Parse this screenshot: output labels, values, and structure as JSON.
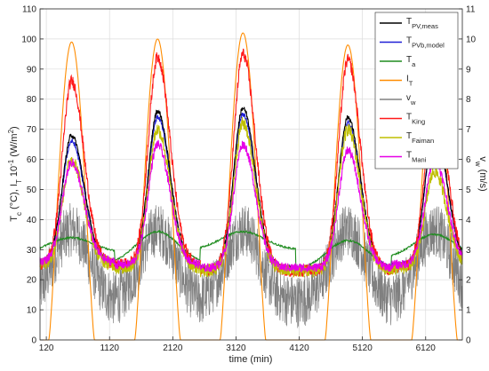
{
  "chart_data": {
    "type": "line",
    "xlabel": "time (min)",
    "ylabel_left": {
      "main": "T",
      "sub1": "c",
      "mid": " (°C), I",
      "sub2": "T",
      "tail": " 10",
      "sup": "-1",
      "unit": " (W/m",
      "sup2": "2",
      "close": ")"
    },
    "ylabel_right": {
      "main": "v",
      "sub": "w",
      "unit": " (m/s)"
    },
    "xlim": [
      20,
      6700
    ],
    "ylim_left": [
      0,
      110
    ],
    "ylim_right": [
      0,
      11
    ],
    "x_ticks": [
      120,
      1120,
      2120,
      3120,
      4120,
      5120,
      6120
    ],
    "y_ticks_left": [
      0,
      10,
      20,
      30,
      40,
      50,
      60,
      70,
      80,
      90,
      100,
      110
    ],
    "y_ticks_right": [
      0,
      1,
      2,
      3,
      4,
      5,
      6,
      7,
      8,
      9,
      10,
      11
    ],
    "grid": true,
    "legend_position": "top-right",
    "day_peaks_x": [
      520,
      1880,
      3230,
      4890,
      6260
    ],
    "series": [
      {
        "id": "tpv_meas",
        "label_main": "T",
        "label_sub": "PV,meas",
        "color": "#000000",
        "baseline": [
          26,
          25,
          24,
          24,
          25
        ],
        "peak": [
          68,
          76,
          77,
          74,
          71
        ]
      },
      {
        "id": "tpvb_model",
        "label_main": "T",
        "label_sub": "PVb,model",
        "color": "#1f1fd6",
        "baseline": [
          26,
          25,
          24,
          24,
          25
        ],
        "peak": [
          66,
          74,
          75,
          72,
          70
        ]
      },
      {
        "id": "ta",
        "label_main": "T",
        "label_sub": "a",
        "color": "#1e8c1e",
        "baseline": [
          29,
          25,
          30,
          23,
          27
        ],
        "peak": [
          34,
          36,
          36,
          33,
          35
        ]
      },
      {
        "id": "it",
        "label_main": "I",
        "label_sub": "T",
        "color": "#ff8c00",
        "baseline": [
          0,
          0,
          0,
          0,
          0
        ],
        "peak": [
          99,
          100,
          102,
          98,
          93
        ]
      },
      {
        "id": "vw",
        "label_main": "v",
        "label_sub": "w",
        "color": "#808080",
        "axis": "right",
        "range": [
          0,
          6
        ]
      },
      {
        "id": "tking",
        "label_main": "T",
        "label_sub": "King",
        "color": "#ff1a1a",
        "baseline": [
          25,
          25,
          23,
          23,
          24
        ],
        "peak": [
          86,
          94,
          95,
          93,
          81
        ]
      },
      {
        "id": "tfaiman",
        "label_main": "T",
        "label_sub": "Faiman",
        "color": "#bfbf00",
        "baseline": [
          25,
          24,
          23,
          23,
          24
        ],
        "peak": [
          60,
          70,
          72,
          70,
          56
        ]
      },
      {
        "id": "tmani",
        "label_main": "T",
        "label_sub": "Mani",
        "color": "#e600e6",
        "baseline": [
          26,
          25,
          24,
          24,
          25
        ],
        "peak": [
          59,
          65,
          65,
          63,
          60
        ]
      }
    ]
  }
}
